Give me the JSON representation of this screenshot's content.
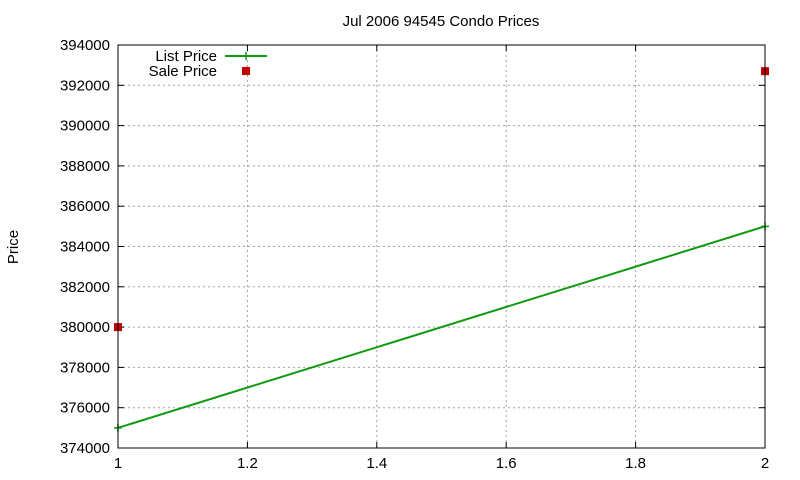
{
  "chart_data": {
    "type": "line",
    "title": "Jul 2006 94545 Condo Prices",
    "xlabel": "",
    "ylabel": "Price",
    "xlim": [
      1,
      2
    ],
    "ylim": [
      374000,
      394000
    ],
    "x_ticks": [
      "1",
      "1.2",
      "1.4",
      "1.6",
      "1.8",
      "2"
    ],
    "y_ticks": [
      "374000",
      "376000",
      "378000",
      "380000",
      "382000",
      "384000",
      "386000",
      "388000",
      "390000",
      "392000",
      "394000"
    ],
    "grid": true,
    "legend_position": "top-left",
    "series": [
      {
        "name": "List Price",
        "style": "line-with-plus-markers",
        "color": "#109a10",
        "points": [
          {
            "x": 1,
            "y": 375000
          },
          {
            "x": 2,
            "y": 385000
          }
        ]
      },
      {
        "name": "Sale Price",
        "style": "square-markers",
        "color": "#c00000",
        "points": [
          {
            "x": 1,
            "y": 380000
          },
          {
            "x": 2,
            "y": 392700
          }
        ]
      }
    ]
  }
}
